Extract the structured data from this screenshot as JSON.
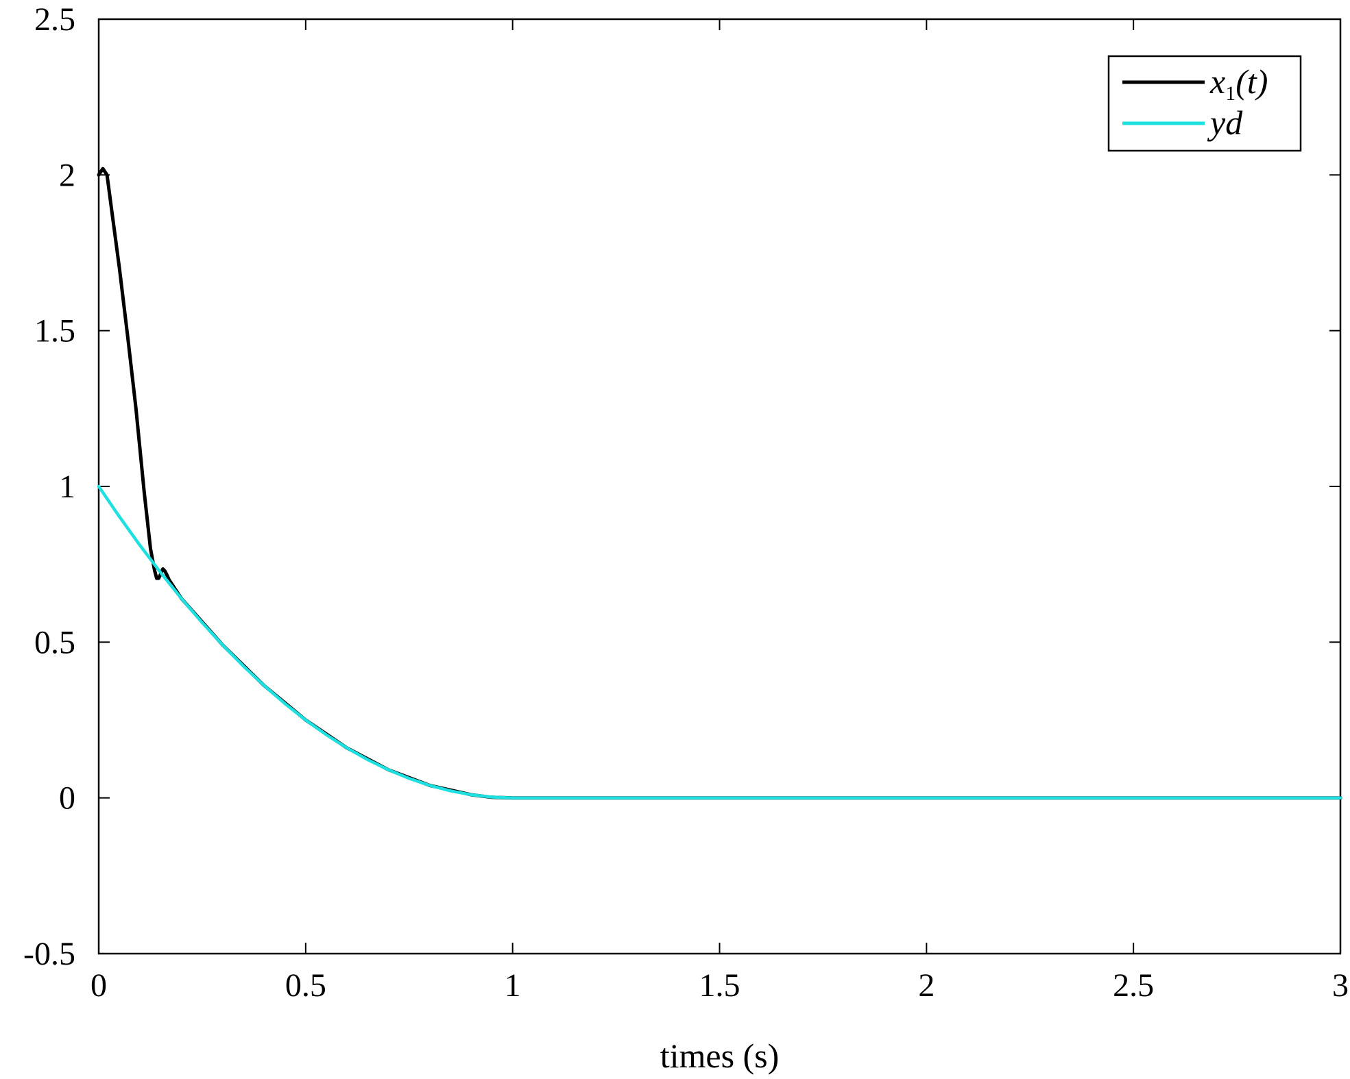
{
  "chart_data": {
    "type": "line",
    "title": "",
    "xlabel": "times (s)",
    "ylabel": "",
    "xlim": [
      0,
      3
    ],
    "ylim": [
      -0.5,
      2.5
    ],
    "xticks": [
      0,
      0.5,
      1,
      1.5,
      2,
      2.5,
      3
    ],
    "xtick_labels": [
      "0",
      "0.5",
      "1",
      "1.5",
      "2",
      "2.5",
      "3"
    ],
    "yticks": [
      -0.5,
      0,
      0.5,
      1,
      1.5,
      2,
      2.5
    ],
    "ytick_labels": [
      "-0.5",
      "0",
      "0.5",
      "1",
      "1.5",
      "2",
      "2.5"
    ],
    "grid": false,
    "legend_position": "top-right",
    "series": [
      {
        "name": "x1(t)",
        "legend_main": "x",
        "legend_sub": "1",
        "legend_suffix": "(t)",
        "color": "#000000",
        "x": [
          0,
          0.01,
          0.02,
          0.03,
          0.05,
          0.07,
          0.09,
          0.11,
          0.125,
          0.135,
          0.14,
          0.145,
          0.15,
          0.155,
          0.16,
          0.165,
          0.17,
          0.2,
          0.3,
          0.4,
          0.5,
          0.6,
          0.7,
          0.8,
          0.9,
          0.95,
          1.0,
          1.5,
          2.0,
          2.5,
          3.0
        ],
        "y": [
          2.0,
          2.02,
          2.0,
          1.9,
          1.7,
          1.48,
          1.25,
          0.98,
          0.8,
          0.73,
          0.705,
          0.705,
          0.72,
          0.735,
          0.728,
          0.715,
          0.7,
          0.64,
          0.49,
          0.36,
          0.25,
          0.16,
          0.09,
          0.04,
          0.01,
          0.002,
          0,
          0,
          0,
          0,
          0
        ]
      },
      {
        "name": "yd",
        "legend_main": "yd",
        "legend_sub": "",
        "legend_suffix": "",
        "color": "#1fe0e0",
        "x": [
          0,
          0.05,
          0.1,
          0.15,
          0.2,
          0.25,
          0.3,
          0.35,
          0.4,
          0.45,
          0.5,
          0.55,
          0.6,
          0.65,
          0.7,
          0.75,
          0.8,
          0.85,
          0.9,
          0.95,
          1.0,
          1.5,
          2.0,
          2.5,
          3.0
        ],
        "y": [
          1.0,
          0.9025,
          0.81,
          0.7225,
          0.64,
          0.5625,
          0.49,
          0.4225,
          0.36,
          0.3025,
          0.25,
          0.2025,
          0.16,
          0.1225,
          0.09,
          0.0625,
          0.04,
          0.0225,
          0.01,
          0.0025,
          0,
          0,
          0,
          0,
          0
        ]
      }
    ]
  }
}
